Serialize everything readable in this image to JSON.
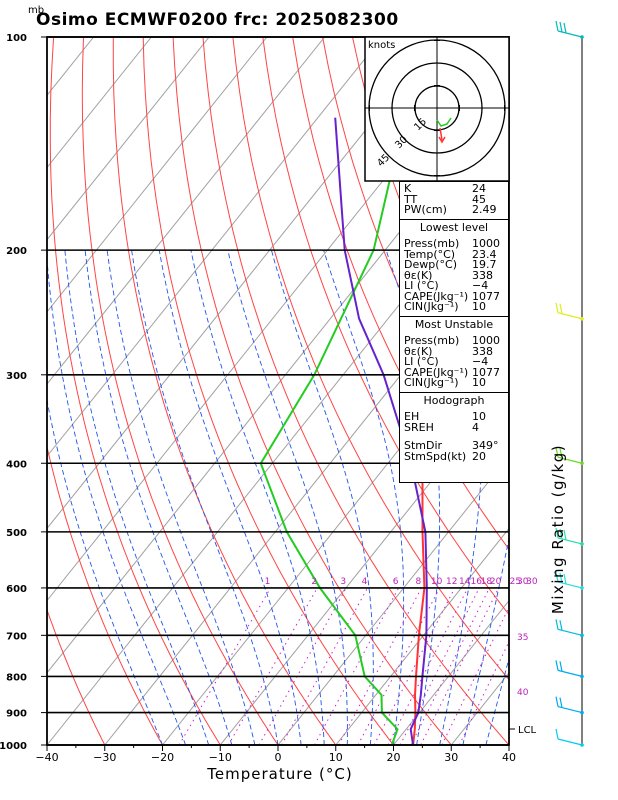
{
  "header": {
    "title": "Osimo ECMWF0200 frc: 2025082300",
    "pressure_unit": "mb"
  },
  "chart_data": {
    "type": "line",
    "title": "Osimo ECMWF0200 frc: 2025082300",
    "xlabel": "Temperature (°C)",
    "ylabel": "Mixing Ratio (g/kg)",
    "xlim": [
      -40,
      40
    ],
    "ylim": [
      1000,
      100
    ],
    "yscale": "log",
    "x_ticks": [
      -40,
      -30,
      -20,
      -10,
      0,
      10,
      20,
      30,
      40
    ],
    "pressure_ticks": [
      1000,
      900,
      800,
      700,
      600,
      500,
      400,
      300,
      200,
      100
    ],
    "mixing_ratio_labels": [
      "1",
      "2",
      "3",
      "4",
      "6",
      "8",
      "10",
      "12",
      "14",
      "16",
      "18",
      "20",
      "25",
      "30"
    ],
    "dry_adiabat_labels": [
      "30",
      "35",
      "40"
    ],
    "lcl_label": "LCL",
    "series": [
      {
        "name": "Temperature",
        "color": "#ff3333",
        "points": [
          [
            1000,
            23.4
          ],
          [
            950,
            21.5
          ],
          [
            900,
            19.3
          ],
          [
            850,
            16.8
          ],
          [
            800,
            14.4
          ],
          [
            700,
            9.2
          ],
          [
            600,
            3.6
          ],
          [
            500,
            -4.5
          ],
          [
            400,
            -14.0
          ],
          [
            300,
            -27.0
          ],
          [
            250,
            -35.0
          ],
          [
            200,
            -43.0
          ],
          [
            100,
            -63.0
          ]
        ]
      },
      {
        "name": "Dewpoint",
        "color": "#22cc22",
        "points": [
          [
            1000,
            19.7
          ],
          [
            950,
            18.5
          ],
          [
            900,
            13.5
          ],
          [
            850,
            11.0
          ],
          [
            800,
            5.5
          ],
          [
            700,
            -1.8
          ],
          [
            600,
            -14.5
          ],
          [
            500,
            -28.0
          ],
          [
            400,
            -42.0
          ],
          [
            300,
            -45.0
          ],
          [
            200,
            -52.0
          ],
          [
            100,
            -73.0
          ]
        ]
      },
      {
        "name": "Parcel",
        "color": "#6622cc",
        "points": [
          [
            1000,
            23.4
          ],
          [
            950,
            20.8
          ],
          [
            900,
            19.8
          ],
          [
            850,
            17.8
          ],
          [
            800,
            15.5
          ],
          [
            700,
            10.5
          ],
          [
            600,
            4.0
          ],
          [
            500,
            -4.0
          ],
          [
            400,
            -16.0
          ],
          [
            300,
            -33.0
          ],
          [
            250,
            -45.0
          ],
          [
            200,
            -57.0
          ],
          [
            130,
            -77.0
          ]
        ]
      }
    ],
    "grid": true
  },
  "hodograph": {
    "units": "knots",
    "ring_labels": [
      "15",
      "30",
      "45"
    ]
  },
  "indices": {
    "general": [
      [
        "K",
        "24"
      ],
      [
        "TT",
        "45"
      ],
      [
        "PW(cm)",
        "2.49"
      ]
    ],
    "lowest_title": "Lowest level",
    "lowest": [
      [
        "Press(mb)",
        "1000"
      ],
      [
        "Temp(°C)",
        "23.4"
      ],
      [
        "Dewp(°C)",
        "19.7"
      ],
      [
        "θε(K)",
        "338"
      ],
      [
        "LI (°C)",
        "−4"
      ],
      [
        "CAPE(Jkg⁻¹)",
        "1077"
      ],
      [
        "CIN(Jkg⁻¹)",
        "10"
      ]
    ],
    "mu_title": "Most Unstable",
    "mu": [
      [
        "Press(mb)",
        "1000"
      ],
      [
        "θε(K)",
        "338"
      ],
      [
        "LI (°C)",
        "−4"
      ],
      [
        "CAPE(Jkg⁻¹)",
        "1077"
      ],
      [
        "CIN(Jkg⁻¹)",
        "10"
      ]
    ],
    "hodo_title": "Hodograph",
    "hodo": [
      [
        "EH",
        "10"
      ],
      [
        "SREH",
        "4"
      ],
      [
        "StmDir",
        "349°"
      ],
      [
        "StmSpd(kt)",
        "20"
      ]
    ]
  }
}
